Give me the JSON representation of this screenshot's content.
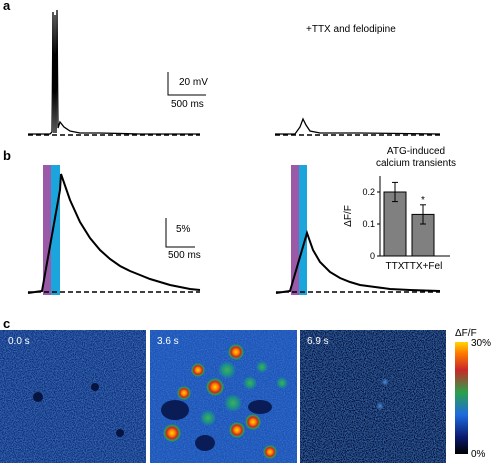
{
  "panels": {
    "a": {
      "label": "a",
      "condition": "+TTX and felodipine",
      "scale_v": "20 mV",
      "scale_t": "500 ms"
    },
    "b": {
      "label": "b",
      "scale_pct": "5%",
      "scale_t": "500 ms"
    },
    "c": {
      "label": "c",
      "frames": [
        {
          "time": "0.0 s"
        },
        {
          "time": "3.6 s"
        },
        {
          "time": "6.9 s"
        }
      ],
      "colorbar": {
        "title": "ΔF/F",
        "max": "30%",
        "min": "0%"
      }
    }
  },
  "chart_data": {
    "type": "bar",
    "title": "ATG-induced calcium transients",
    "ylabel": "ΔF/F",
    "categories": [
      "TTX",
      "TTX+Fel"
    ],
    "values": [
      0.2,
      0.13
    ],
    "errors": [
      0.03,
      0.03
    ],
    "ylim": [
      0,
      0.25
    ],
    "yticks": [
      "0",
      "0.1",
      "0.2"
    ],
    "significance": [
      "",
      "*"
    ],
    "bar_color": "#808080"
  },
  "colors": {
    "stim_purple": "#9b5aa8",
    "stim_cyan": "#1aa5dd"
  }
}
